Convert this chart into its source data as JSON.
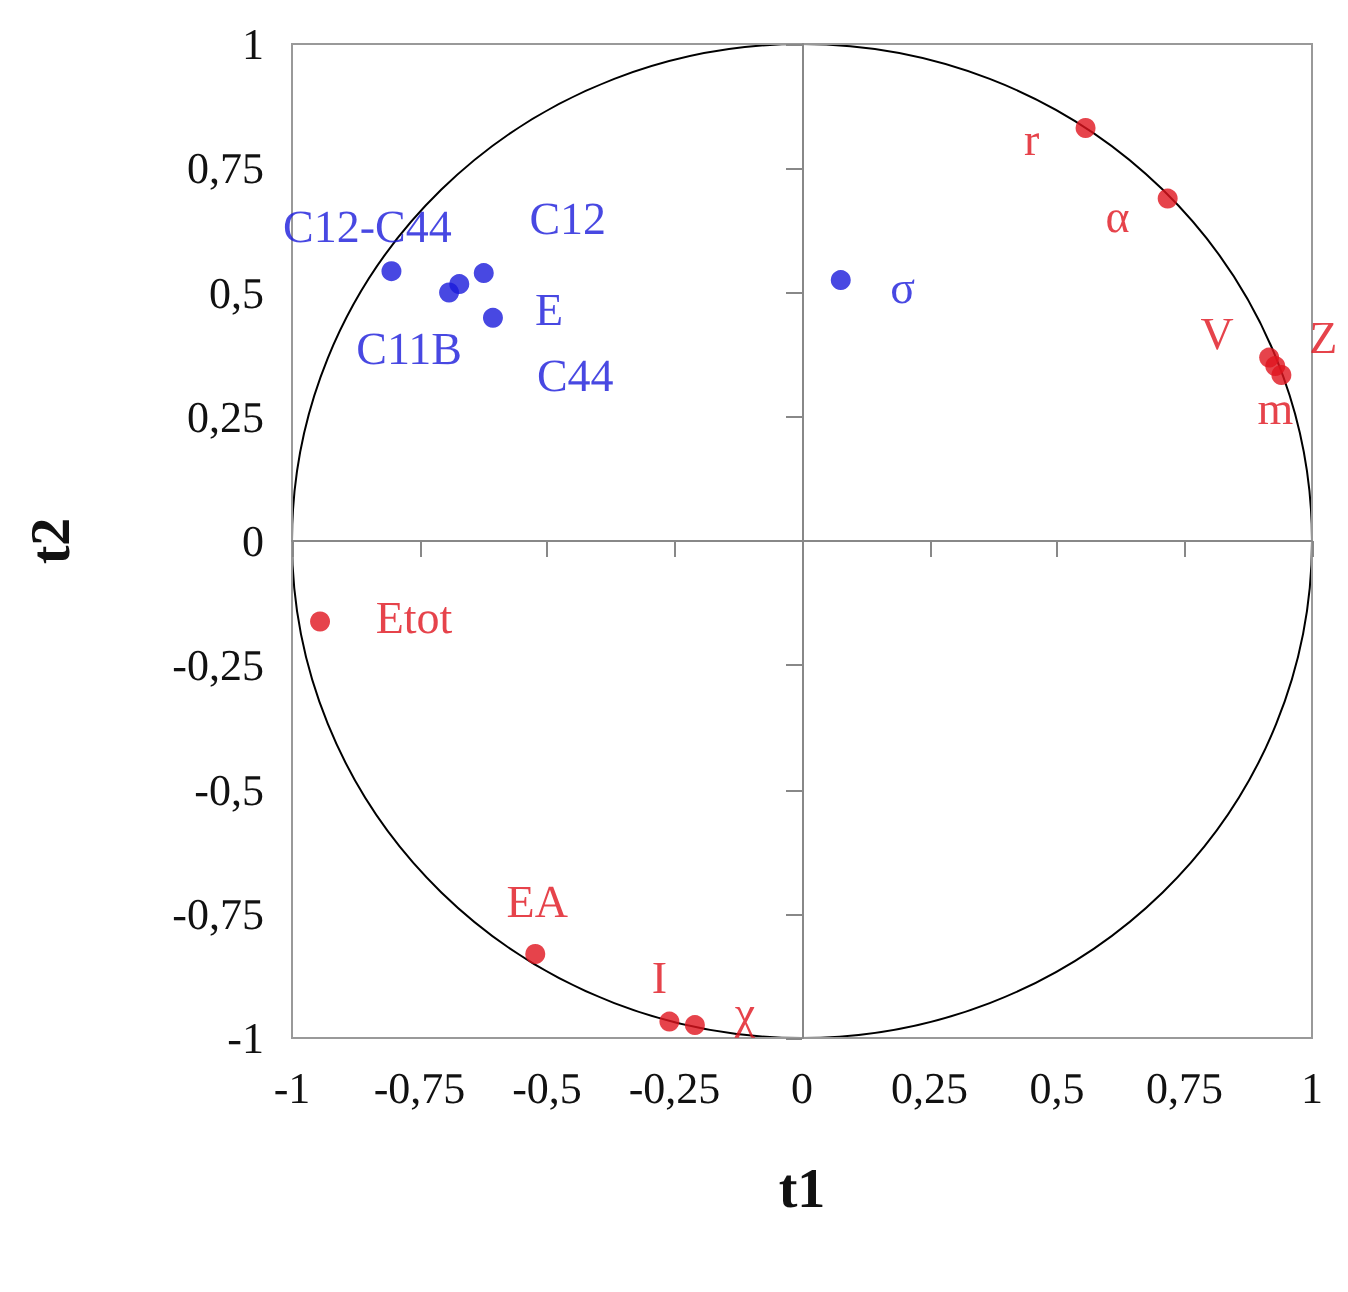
{
  "chart_data": {
    "type": "scatter",
    "xlabel": "t1",
    "ylabel": "t2",
    "marker": "circle",
    "xlim": [
      -1,
      1
    ],
    "ylim": [
      -1,
      1
    ],
    "xticks": [
      -1,
      {
        "value": -0.75,
        "label": "-0,75"
      },
      {
        "value": -0.5,
        "label": "-0,5"
      },
      {
        "value": -0.25,
        "label": "-0,25"
      },
      0,
      {
        "value": 0.25,
        "label": "0,25"
      },
      {
        "value": 0.5,
        "label": "0,5"
      },
      {
        "value": 0.75,
        "label": "0,75"
      },
      1
    ],
    "yticks": [
      -1,
      {
        "value": -0.75,
        "label": "-0,75"
      },
      {
        "value": -0.5,
        "label": "-0,5"
      },
      {
        "value": -0.25,
        "label": "-0,25"
      },
      0,
      {
        "value": 0.25,
        "label": "0,25"
      },
      {
        "value": 0.5,
        "label": "0,5"
      },
      {
        "value": 0.75,
        "label": "0,75"
      },
      1
    ],
    "series": [
      {
        "type": "scatter",
        "color": "#1a1adb",
        "x": [
          -0.805,
          -0.692,
          -0.672,
          -0.624,
          -0.606,
          0.076
        ],
        "values": [
          0.543,
          0.5,
          0.517,
          0.539,
          0.449,
          0.525
        ],
        "value_labels": [
          "C12-C44",
          "C11B",
          "C44",
          "C12",
          "E",
          "σ"
        ]
      },
      {
        "type": "scatter",
        "color": "#e0141e",
        "x": [
          0.556,
          0.717,
          0.916,
          0.928,
          0.94,
          -0.945,
          -0.523,
          -0.26,
          -0.21
        ],
        "values": [
          0.831,
          0.689,
          0.369,
          0.352,
          0.334,
          -0.162,
          -0.831,
          -0.967,
          -0.974
        ],
        "value_labels": [
          "r",
          "α",
          "V",
          "Z",
          "m",
          "Etot",
          "EA",
          "I",
          "χ"
        ]
      }
    ]
  }
}
